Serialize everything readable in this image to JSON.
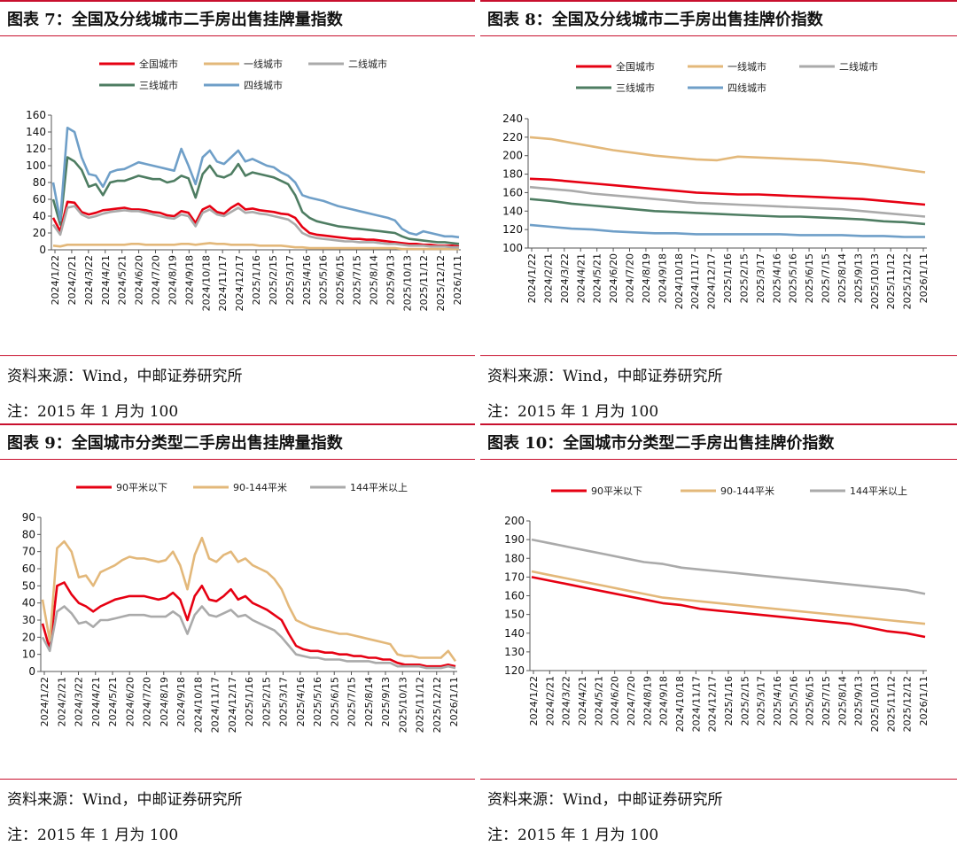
{
  "panels": [
    {
      "title": "图表 7：全国及分线城市二手房出售挂牌量指数",
      "source": "资料来源：Wind，中邮证券研究所",
      "note": "注：2015 年 1 月为 100"
    },
    {
      "title": "图表 8：全国及分线城市二手房出售挂牌价指数",
      "source": "资料来源：Wind，中邮证券研究所",
      "note": "注：2015 年 1 月为 100"
    },
    {
      "title": "图表 9：全国城市分类型二手房出售挂牌量指数",
      "source": "资料来源：Wind，中邮证券研究所",
      "note": "注：2015 年 1 月为 100"
    },
    {
      "title": "图表 10：全国城市分类型二手房出售挂牌价指数",
      "source": "资料来源：Wind，中邮证券研究所",
      "note": "注：2015 年 1 月为 100"
    }
  ],
  "colors": {
    "red": "#e60012",
    "gold": "#e3b87a",
    "gray": "#aaaaaa",
    "green": "#4e7d62",
    "blue": "#6f9fc8",
    "accent_rule": "#c8102e"
  },
  "chart_data": [
    {
      "type": "line",
      "title": "",
      "legend_position": "top",
      "x_ticks": [
        "2024/1/22",
        "2024/2/21",
        "2024/3/22",
        "2024/4/21",
        "2024/5/21",
        "2024/6/20",
        "2024/7/20",
        "2024/8/19",
        "2024/9/18",
        "2024/10/18",
        "2024/11/17",
        "2024/12/17",
        "2025/1/16",
        "2025/2/15",
        "2025/3/17",
        "2025/4/16",
        "2025/5/16",
        "2025/6/15",
        "2025/7/15",
        "2025/8/14",
        "2025/9/13",
        "2025/10/13",
        "2025/11/12",
        "2025/12/12",
        "2026/1/11"
      ],
      "ylim": [
        0,
        160
      ],
      "yticks": [
        0,
        20,
        40,
        60,
        80,
        100,
        120,
        140,
        160
      ],
      "series": [
        {
          "name": "全国城市",
          "color": "#e60012",
          "values": [
            38,
            22,
            57,
            56,
            45,
            42,
            44,
            47,
            48,
            49,
            50,
            48,
            48,
            47,
            45,
            44,
            41,
            40,
            46,
            44,
            32,
            48,
            52,
            45,
            43,
            50,
            55,
            48,
            49,
            47,
            46,
            45,
            43,
            42,
            38,
            27,
            20,
            18,
            17,
            16,
            15,
            14,
            13,
            13,
            12,
            12,
            11,
            10,
            9,
            8,
            7,
            7,
            6,
            6,
            5,
            5,
            5,
            4
          ]
        },
        {
          "name": "一线城市",
          "color": "#e3b87a",
          "values": [
            5,
            4,
            6,
            6,
            6,
            6,
            6,
            6,
            6,
            6,
            6,
            7,
            7,
            6,
            6,
            6,
            6,
            6,
            7,
            7,
            6,
            7,
            8,
            7,
            7,
            6,
            6,
            6,
            6,
            5,
            5,
            5,
            5,
            4,
            3,
            3,
            2,
            2,
            2,
            2,
            2,
            2,
            2,
            2,
            2,
            2,
            2,
            2,
            2,
            1,
            1,
            1,
            1,
            1,
            1,
            1,
            1,
            1
          ]
        },
        {
          "name": "二线城市",
          "color": "#aaaaaa",
          "values": [
            30,
            18,
            50,
            52,
            42,
            38,
            40,
            43,
            45,
            46,
            47,
            46,
            46,
            44,
            42,
            40,
            38,
            37,
            42,
            40,
            28,
            44,
            48,
            42,
            40,
            45,
            50,
            44,
            45,
            43,
            42,
            40,
            38,
            36,
            30,
            20,
            16,
            14,
            13,
            12,
            11,
            10,
            10,
            9,
            9,
            9,
            8,
            7,
            7,
            6,
            5,
            5,
            5,
            4,
            4,
            4,
            3,
            3
          ]
        },
        {
          "name": "三线城市",
          "color": "#4e7d62",
          "values": [
            60,
            30,
            110,
            105,
            95,
            75,
            78,
            65,
            80,
            82,
            82,
            85,
            88,
            86,
            84,
            84,
            80,
            82,
            88,
            85,
            62,
            90,
            100,
            88,
            86,
            90,
            102,
            88,
            92,
            90,
            88,
            86,
            82,
            78,
            65,
            45,
            38,
            34,
            32,
            30,
            28,
            27,
            26,
            25,
            24,
            23,
            22,
            21,
            20,
            16,
            13,
            12,
            11,
            10,
            9,
            9,
            8,
            7
          ]
        },
        {
          "name": "四线城市",
          "color": "#6f9fc8",
          "values": [
            80,
            35,
            145,
            140,
            110,
            90,
            88,
            75,
            92,
            95,
            96,
            100,
            104,
            102,
            100,
            98,
            96,
            94,
            120,
            100,
            78,
            110,
            118,
            105,
            102,
            110,
            118,
            105,
            108,
            104,
            100,
            98,
            92,
            88,
            80,
            65,
            62,
            60,
            58,
            55,
            52,
            50,
            48,
            46,
            44,
            42,
            40,
            38,
            35,
            25,
            20,
            18,
            22,
            20,
            18,
            16,
            16,
            15
          ]
        }
      ]
    },
    {
      "type": "line",
      "title": "",
      "legend_position": "top",
      "x_ticks": [
        "2024/1/22",
        "2024/2/21",
        "2024/3/22",
        "2024/4/21",
        "2024/5/21",
        "2024/6/20",
        "2024/7/20",
        "2024/8/19",
        "2024/9/18",
        "2024/10/18",
        "2024/11/17",
        "2024/12/17",
        "2025/1/16",
        "2025/2/15",
        "2025/3/17",
        "2025/4/16",
        "2025/5/16",
        "2025/6/15",
        "2025/7/15",
        "2025/8/14",
        "2025/9/13",
        "2025/10/13",
        "2025/11/12",
        "2025/12/12",
        "2026/1/11"
      ],
      "ylim": [
        100,
        240
      ],
      "yticks": [
        100,
        120,
        140,
        160,
        180,
        200,
        220,
        240
      ],
      "series": [
        {
          "name": "全国城市",
          "color": "#e60012",
          "values": [
            175,
            174,
            172,
            170,
            168,
            166,
            164,
            162,
            160,
            159,
            158,
            158,
            157,
            156,
            155,
            154,
            153,
            151,
            149,
            147
          ]
        },
        {
          "name": "一线城市",
          "color": "#e3b87a",
          "values": [
            220,
            218,
            214,
            210,
            206,
            203,
            200,
            198,
            196,
            195,
            199,
            198,
            197,
            196,
            195,
            193,
            191,
            188,
            185,
            182
          ]
        },
        {
          "name": "二线城市",
          "color": "#aaaaaa",
          "values": [
            166,
            164,
            162,
            159,
            157,
            155,
            153,
            151,
            149,
            148,
            147,
            146,
            145,
            144,
            143,
            142,
            140,
            138,
            136,
            134
          ]
        },
        {
          "name": "三线城市",
          "color": "#4e7d62",
          "values": [
            153,
            151,
            148,
            146,
            144,
            142,
            140,
            139,
            138,
            137,
            136,
            135,
            134,
            134,
            133,
            132,
            131,
            129,
            128,
            126
          ]
        },
        {
          "name": "四线城市",
          "color": "#6f9fc8",
          "values": [
            125,
            123,
            121,
            120,
            118,
            117,
            116,
            116,
            115,
            115,
            115,
            115,
            115,
            114,
            114,
            114,
            113,
            113,
            112,
            112
          ]
        }
      ]
    },
    {
      "type": "line",
      "title": "",
      "legend_position": "top",
      "x_ticks": [
        "2024/1/22",
        "2024/2/21",
        "2024/3/22",
        "2024/4/21",
        "2024/5/21",
        "2024/6/20",
        "2024/7/20",
        "2024/8/19",
        "2024/9/18",
        "2024/10/18",
        "2024/11/17",
        "2024/12/17",
        "2025/1/16",
        "2025/2/15",
        "2025/3/17",
        "2025/4/16",
        "2025/5/16",
        "2025/6/15",
        "2025/7/15",
        "2025/8/14",
        "2025/9/13",
        "2025/10/13",
        "2025/11/12",
        "2025/12/12",
        "2026/1/11"
      ],
      "ylim": [
        0,
        90
      ],
      "yticks": [
        0,
        10,
        20,
        30,
        40,
        50,
        60,
        70,
        80,
        90
      ],
      "series": [
        {
          "name": "90平米以下",
          "color": "#e60012",
          "values": [
            28,
            13,
            50,
            52,
            45,
            40,
            38,
            35,
            38,
            40,
            42,
            43,
            44,
            44,
            44,
            43,
            42,
            43,
            46,
            42,
            30,
            44,
            50,
            42,
            41,
            44,
            48,
            42,
            44,
            40,
            38,
            36,
            33,
            30,
            22,
            15,
            13,
            12,
            12,
            11,
            11,
            10,
            10,
            9,
            9,
            8,
            8,
            7,
            7,
            5,
            4,
            4,
            4,
            3,
            3,
            3,
            4,
            3
          ]
        },
        {
          "name": "90-144平米",
          "color": "#e3b87a",
          "values": [
            42,
            18,
            72,
            76,
            70,
            55,
            56,
            50,
            58,
            60,
            62,
            65,
            67,
            66,
            66,
            65,
            64,
            65,
            70,
            62,
            48,
            68,
            78,
            66,
            64,
            68,
            70,
            64,
            66,
            62,
            60,
            58,
            54,
            48,
            38,
            30,
            28,
            26,
            25,
            24,
            23,
            22,
            22,
            21,
            20,
            19,
            18,
            17,
            16,
            10,
            9,
            9,
            8,
            8,
            8,
            8,
            12,
            6
          ]
        },
        {
          "name": "144平米以上",
          "color": "#aaaaaa",
          "values": [
            20,
            12,
            35,
            38,
            34,
            28,
            29,
            26,
            30,
            30,
            31,
            32,
            33,
            33,
            33,
            32,
            32,
            32,
            35,
            32,
            22,
            33,
            38,
            33,
            32,
            34,
            36,
            32,
            33,
            30,
            28,
            26,
            24,
            20,
            15,
            10,
            9,
            8,
            8,
            7,
            7,
            7,
            6,
            6,
            6,
            6,
            5,
            5,
            5,
            3,
            3,
            3,
            3,
            2,
            2,
            2,
            3,
            2
          ]
        }
      ]
    },
    {
      "type": "line",
      "title": "",
      "legend_position": "top",
      "x_ticks": [
        "2024/1/22",
        "2024/2/21",
        "2024/3/22",
        "2024/4/21",
        "2024/5/21",
        "2024/6/20",
        "2024/7/20",
        "2024/8/19",
        "2024/9/18",
        "2024/10/18",
        "2024/11/17",
        "2024/12/17",
        "2025/1/16",
        "2025/2/15",
        "2025/3/17",
        "2025/4/16",
        "2025/5/16",
        "2025/6/15",
        "2025/7/15",
        "2025/8/14",
        "2025/9/13",
        "2025/10/13",
        "2025/11/12",
        "2025/12/12",
        "2026/1/11"
      ],
      "ylim": [
        120,
        200
      ],
      "yticks": [
        120,
        130,
        140,
        150,
        160,
        170,
        180,
        190,
        200
      ],
      "series": [
        {
          "name": "90平米以下",
          "color": "#e60012",
          "values": [
            170,
            168,
            166,
            164,
            162,
            160,
            158,
            156,
            155,
            153,
            152,
            151,
            150,
            149,
            148,
            147,
            146,
            145,
            143,
            141,
            140,
            138
          ]
        },
        {
          "name": "90-144平米",
          "color": "#e3b87a",
          "values": [
            173,
            171,
            169,
            167,
            165,
            163,
            161,
            159,
            158,
            157,
            156,
            155,
            154,
            153,
            152,
            151,
            150,
            149,
            148,
            147,
            146,
            145
          ]
        },
        {
          "name": "144平米以上",
          "color": "#aaaaaa",
          "values": [
            190,
            188,
            186,
            184,
            182,
            180,
            178,
            177,
            175,
            174,
            173,
            172,
            171,
            170,
            169,
            168,
            167,
            166,
            165,
            164,
            163,
            161
          ]
        }
      ]
    }
  ]
}
